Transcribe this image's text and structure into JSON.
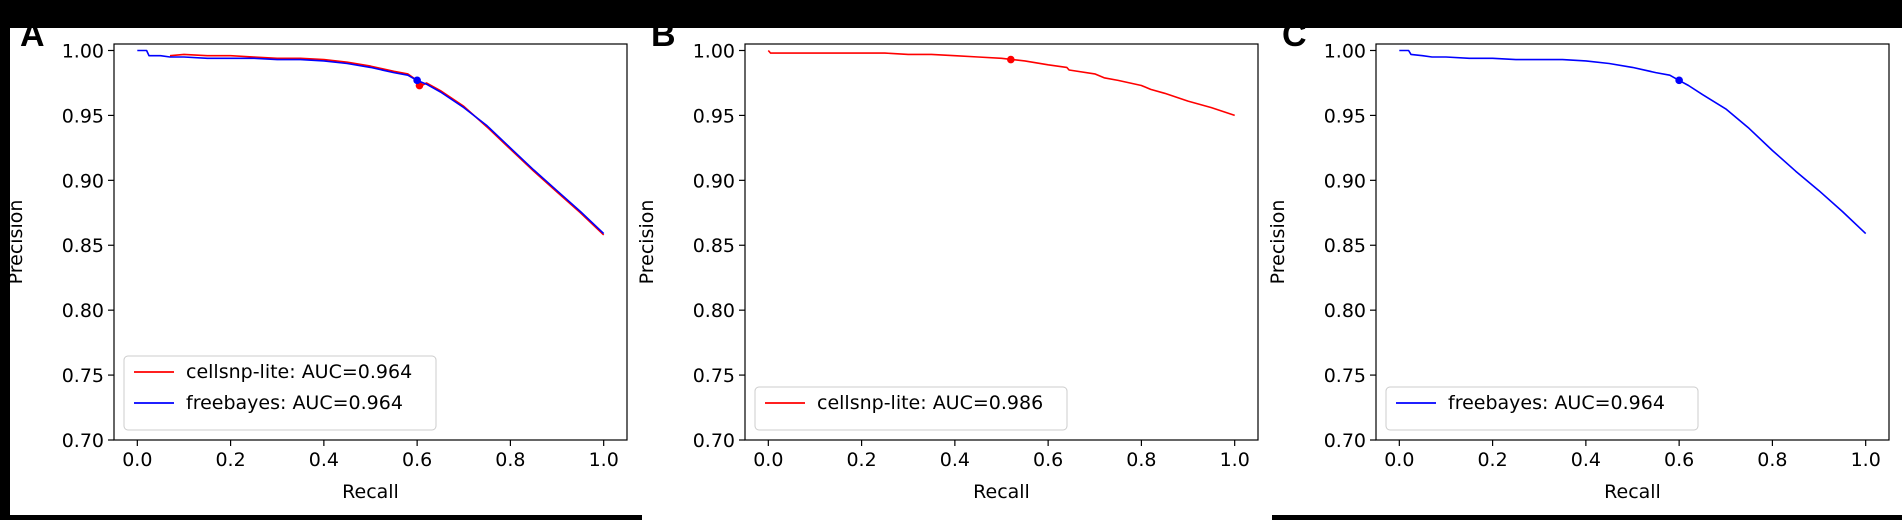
{
  "panel_labels": [
    "A",
    "B",
    "C"
  ],
  "chart_data": [
    {
      "type": "line",
      "panel": "A",
      "xlabel": "Recall",
      "ylabel": "Precision",
      "xlim": [
        -0.05,
        1.05
      ],
      "ylim": [
        0.7,
        1.005
      ],
      "xticks": [
        "0.0",
        "0.2",
        "0.4",
        "0.6",
        "0.8",
        "1.0"
      ],
      "yticks": [
        "0.70",
        "0.75",
        "0.80",
        "0.85",
        "0.90",
        "0.95",
        "1.00"
      ],
      "grid": false,
      "legend_position": "lower-left",
      "series": [
        {
          "name": "cellsnp-lite: AUC=0.964",
          "color": "#ff0000",
          "x": [
            0.07,
            0.1,
            0.15,
            0.2,
            0.25,
            0.3,
            0.35,
            0.4,
            0.45,
            0.5,
            0.55,
            0.58,
            0.6,
            0.61,
            0.62,
            0.65,
            0.7,
            0.75,
            0.8,
            0.85,
            0.9,
            0.95,
            1.0
          ],
          "y": [
            0.996,
            0.997,
            0.996,
            0.996,
            0.995,
            0.994,
            0.994,
            0.993,
            0.991,
            0.988,
            0.984,
            0.982,
            0.977,
            0.973,
            0.975,
            0.969,
            0.957,
            0.941,
            0.924,
            0.907,
            0.891,
            0.875,
            0.858
          ],
          "marker": {
            "x": 0.605,
            "y": 0.973
          }
        },
        {
          "name": "freebayes: AUC=0.964",
          "color": "#0000ff",
          "x": [
            0.0,
            0.02,
            0.025,
            0.05,
            0.07,
            0.1,
            0.15,
            0.2,
            0.25,
            0.3,
            0.35,
            0.4,
            0.45,
            0.5,
            0.55,
            0.58,
            0.6,
            0.62,
            0.65,
            0.7,
            0.75,
            0.8,
            0.85,
            0.9,
            0.95,
            1.0
          ],
          "y": [
            1.0,
            1.0,
            0.996,
            0.996,
            0.995,
            0.995,
            0.994,
            0.994,
            0.994,
            0.993,
            0.993,
            0.992,
            0.99,
            0.987,
            0.983,
            0.981,
            0.977,
            0.974,
            0.968,
            0.956,
            0.942,
            0.925,
            0.908,
            0.892,
            0.876,
            0.859
          ],
          "marker": {
            "x": 0.6,
            "y": 0.977
          }
        }
      ]
    },
    {
      "type": "line",
      "panel": "B",
      "xlabel": "Recall",
      "ylabel": "Precision",
      "xlim": [
        -0.05,
        1.05
      ],
      "ylim": [
        0.7,
        1.005
      ],
      "xticks": [
        "0.0",
        "0.2",
        "0.4",
        "0.6",
        "0.8",
        "1.0"
      ],
      "yticks": [
        "0.70",
        "0.75",
        "0.80",
        "0.85",
        "0.90",
        "0.95",
        "1.00"
      ],
      "grid": false,
      "legend_position": "lower-left",
      "series": [
        {
          "name": "cellsnp-lite: AUC=0.986",
          "color": "#ff0000",
          "x": [
            0.0,
            0.005,
            0.01,
            0.05,
            0.1,
            0.15,
            0.2,
            0.25,
            0.3,
            0.35,
            0.4,
            0.45,
            0.5,
            0.55,
            0.6,
            0.64,
            0.645,
            0.7,
            0.72,
            0.75,
            0.8,
            0.82,
            0.85,
            0.9,
            0.95,
            1.0
          ],
          "y": [
            1.0,
            0.998,
            0.998,
            0.998,
            0.998,
            0.998,
            0.998,
            0.998,
            0.997,
            0.997,
            0.996,
            0.995,
            0.994,
            0.992,
            0.989,
            0.987,
            0.985,
            0.982,
            0.979,
            0.977,
            0.973,
            0.97,
            0.967,
            0.961,
            0.956,
            0.95
          ],
          "marker": {
            "x": 0.52,
            "y": 0.993
          }
        }
      ]
    },
    {
      "type": "line",
      "panel": "C",
      "xlabel": "Recall",
      "ylabel": "Precision",
      "xlim": [
        -0.05,
        1.05
      ],
      "ylim": [
        0.7,
        1.005
      ],
      "xticks": [
        "0.0",
        "0.2",
        "0.4",
        "0.6",
        "0.8",
        "1.0"
      ],
      "yticks": [
        "0.70",
        "0.75",
        "0.80",
        "0.85",
        "0.90",
        "0.95",
        "1.00"
      ],
      "grid": false,
      "legend_position": "lower-left",
      "series": [
        {
          "name": "freebayes: AUC=0.964",
          "color": "#0000ff",
          "x": [
            0.0,
            0.02,
            0.025,
            0.05,
            0.07,
            0.1,
            0.15,
            0.2,
            0.25,
            0.3,
            0.35,
            0.4,
            0.45,
            0.5,
            0.55,
            0.58,
            0.6,
            0.62,
            0.65,
            0.7,
            0.75,
            0.8,
            0.85,
            0.9,
            0.95,
            1.0
          ],
          "y": [
            1.0,
            1.0,
            0.997,
            0.996,
            0.995,
            0.995,
            0.994,
            0.994,
            0.993,
            0.993,
            0.993,
            0.992,
            0.99,
            0.987,
            0.983,
            0.981,
            0.977,
            0.973,
            0.966,
            0.955,
            0.94,
            0.923,
            0.907,
            0.892,
            0.876,
            0.859
          ],
          "marker": {
            "x": 0.6,
            "y": 0.977
          }
        }
      ]
    }
  ]
}
